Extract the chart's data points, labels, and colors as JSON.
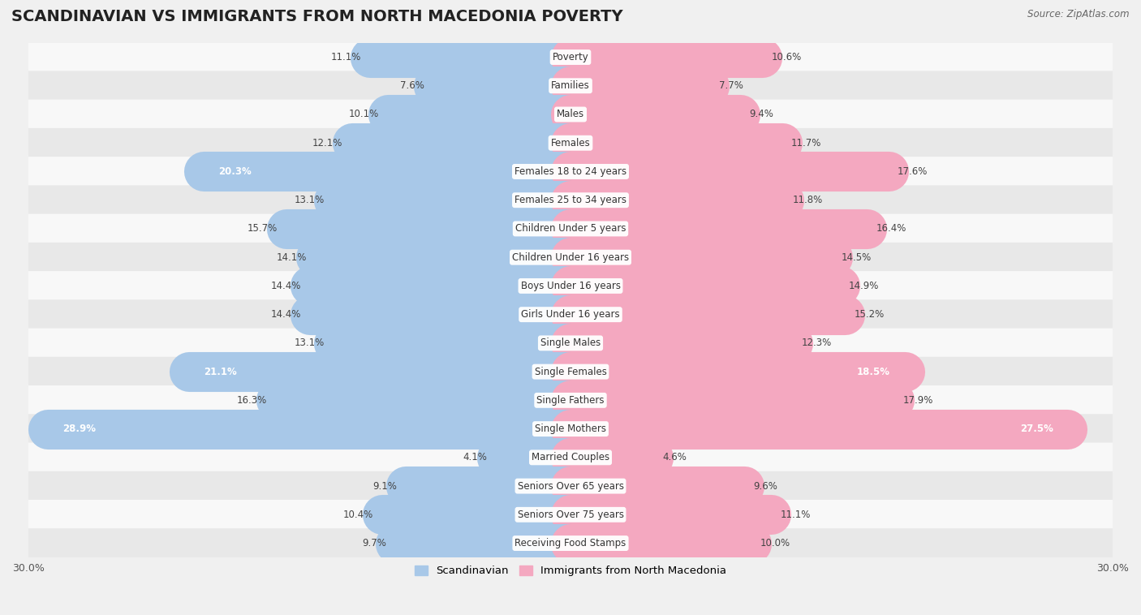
{
  "title": "SCANDINAVIAN VS IMMIGRANTS FROM NORTH MACEDONIA POVERTY",
  "source": "Source: ZipAtlas.com",
  "categories": [
    "Poverty",
    "Families",
    "Males",
    "Females",
    "Females 18 to 24 years",
    "Females 25 to 34 years",
    "Children Under 5 years",
    "Children Under 16 years",
    "Boys Under 16 years",
    "Girls Under 16 years",
    "Single Males",
    "Single Females",
    "Single Fathers",
    "Single Mothers",
    "Married Couples",
    "Seniors Over 65 years",
    "Seniors Over 75 years",
    "Receiving Food Stamps"
  ],
  "scandinavian": [
    11.1,
    7.6,
    10.1,
    12.1,
    20.3,
    13.1,
    15.7,
    14.1,
    14.4,
    14.4,
    13.1,
    21.1,
    16.3,
    28.9,
    4.1,
    9.1,
    10.4,
    9.7
  ],
  "immigrants": [
    10.6,
    7.7,
    9.4,
    11.7,
    17.6,
    11.8,
    16.4,
    14.5,
    14.9,
    15.2,
    12.3,
    18.5,
    17.9,
    27.5,
    4.6,
    9.6,
    11.1,
    10.0
  ],
  "scand_color": "#a8c8e8",
  "immig_color": "#f4a8c0",
  "scand_label": "Scandinavian",
  "immig_label": "Immigrants from North Macedonia",
  "xlim": 30.0,
  "bg_color": "#f0f0f0",
  "row_color_light": "#f8f8f8",
  "row_color_dark": "#e8e8e8",
  "title_fontsize": 14,
  "label_fontsize": 8.5,
  "value_fontsize": 8.5
}
